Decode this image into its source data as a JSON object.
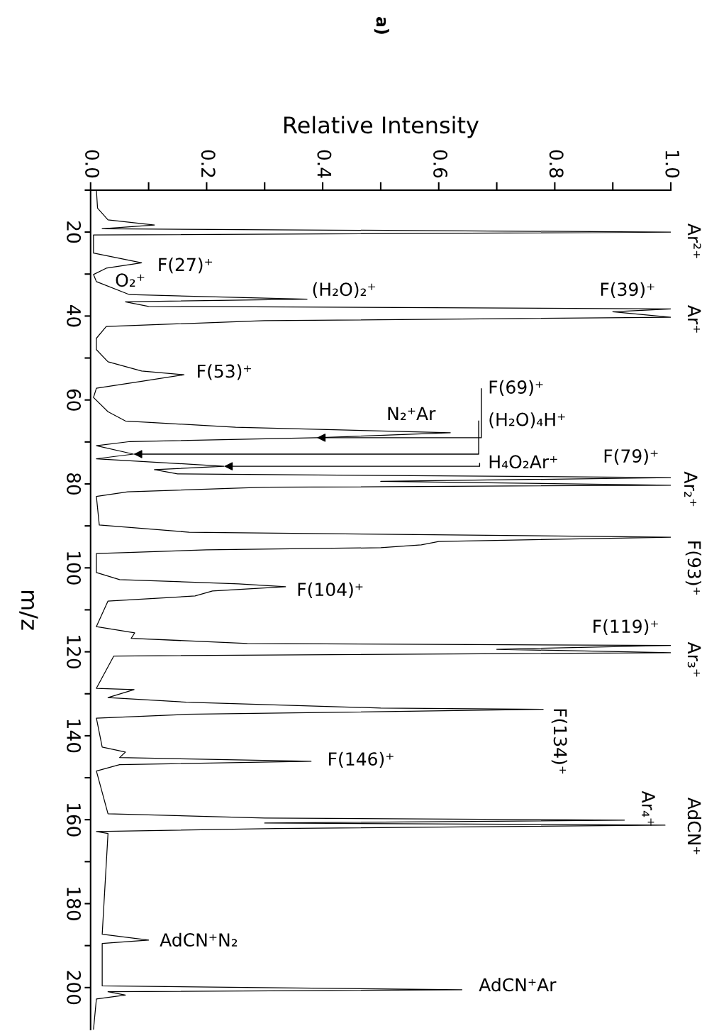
{
  "chart_data": {
    "type": "line",
    "title": "a)",
    "xlabel": "Relative Intensity",
    "ylabel": "m/z",
    "xlim": [
      0,
      1
    ],
    "ylim": [
      210,
      10
    ],
    "yticks": [
      {
        "value": 10,
        "label": null
      },
      20,
      {
        "value": 30,
        "label": null
      },
      40,
      {
        "value": 50,
        "label": null
      },
      60,
      {
        "value": 70,
        "label": null
      },
      80,
      {
        "value": 90,
        "label": null
      },
      100,
      {
        "value": 110,
        "label": null
      },
      120,
      {
        "value": 130,
        "label": null
      },
      140,
      {
        "value": 150,
        "label": null
      },
      160,
      {
        "value": 170,
        "label": null
      },
      180,
      {
        "value": 190,
        "label": null
      },
      200
    ],
    "xticks": [
      {
        "value": 0,
        "label": "0.0"
      },
      {
        "value": 0.1,
        "label": null
      },
      {
        "value": 0.2,
        "label": "0.2"
      },
      {
        "value": 0.3,
        "label": null
      },
      {
        "value": 0.4,
        "label": "0.4"
      },
      {
        "value": 0.5,
        "label": null
      },
      {
        "value": 0.6,
        "label": "0.6"
      },
      {
        "value": 0.7,
        "label": null
      },
      {
        "value": 0.8,
        "label": "0.8"
      },
      {
        "value": 0.9,
        "label": null
      },
      {
        "value": 1,
        "label": "1.0"
      }
    ],
    "grid": false,
    "legend": false,
    "marker": "none",
    "line_style": "solid",
    "series": [
      {
        "color": "#000000",
        "values": [
          10,
          14.3,
          17.1,
          18.3,
          19.2,
          20,
          20.7,
          25,
          27.3,
          28.6,
          30.1,
          31.8,
          34.9,
          36,
          36.6,
          37.7,
          38.3,
          39,
          40.3,
          41.1,
          42.5,
          45.3,
          48,
          50.9,
          53.1,
          54,
          55.5,
          57.2,
          59.4,
          62.8,
          65,
          66.5,
          67.8,
          69,
          69.9,
          70.9,
          72.9,
          74,
          75.8,
          76.6,
          77.6,
          78.5,
          79.4,
          80.3,
          80.8,
          81.9,
          83,
          89.8,
          91.5,
          92.7,
          93.7,
          94.5,
          95.2,
          95.7,
          96.6,
          101.1,
          102.8,
          103.8,
          104.5,
          105.5,
          106.7,
          107.9,
          114,
          115.5,
          116.8,
          118,
          118.5,
          119.4,
          120.2,
          121,
          128.7,
          129,
          130.9,
          132,
          133.4,
          133.7,
          134.9,
          135.8,
          142.7,
          143.9,
          145.2,
          146.1,
          146.9,
          148.4,
          158.6,
          159.6,
          160.1,
          160.8,
          161.3,
          162.1,
          162.8,
          163.3,
          187.3,
          188.7,
          189.5,
          199.6,
          200.5,
          201,
          201.8,
          202.7,
          210
        ],
        "x": [
          0.01,
          0.012,
          0.03,
          0.11,
          0.02,
          1,
          0.005,
          0.005,
          0.088,
          0.027,
          0.005,
          0.01,
          0.067,
          0.373,
          0.06,
          0.1,
          1,
          0.9,
          1,
          0.3,
          0.027,
          0.01,
          0.01,
          0.03,
          0.088,
          0.161,
          0.09,
          0.01,
          0.005,
          0.03,
          0.06,
          0.25,
          0.62,
          0.39,
          0.068,
          0.01,
          0.074,
          0.01,
          0.23,
          0.11,
          0.15,
          1,
          0.5,
          1,
          0.3,
          0.064,
          0.01,
          0.015,
          0.17,
          1,
          0.6,
          0.57,
          0.5,
          0.2,
          0.01,
          0.01,
          0.05,
          0.255,
          0.336,
          0.21,
          0.18,
          0.03,
          0.01,
          0.076,
          0.07,
          0.27,
          1,
          0.7,
          1,
          0.04,
          0.01,
          0.075,
          0.03,
          0.165,
          0.5,
          0.78,
          0.165,
          0.01,
          0.02,
          0.06,
          0.05,
          0.38,
          0.05,
          0.01,
          0.03,
          0.3,
          0.92,
          0.3,
          0.99,
          0.32,
          0.01,
          0.03,
          0.02,
          0.1,
          0.02,
          0.02,
          0.64,
          0.03,
          0.06,
          0.01,
          0.005
        ]
      }
    ],
    "annotations": [
      "Ar²⁺",
      "F(27)⁺",
      "O₂⁺",
      "(H₂O)₂⁺",
      "F(39)⁺",
      "Ar⁺",
      "F(53)⁺",
      {
        "text": "F(69)⁺",
        "y": 69,
        "x": 0.39
      },
      "N₂⁺Ar",
      {
        "text": "(H₂O)₄H⁺",
        "y": 72.9,
        "x": 0.074
      },
      {
        "text": "H₄O₂Ar⁺",
        "y": 75.8,
        "x": 0.23
      },
      "F(79)⁺",
      "Ar₂⁺",
      "F(93)⁺",
      "F(104)⁺",
      "F(119)⁺",
      "Ar₃⁺",
      "F(134)⁺",
      "F(146)⁺",
      "Ar₄⁺",
      "AdCN⁺",
      "AdCN⁺N₂",
      "AdCN⁺Ar"
    ]
  }
}
